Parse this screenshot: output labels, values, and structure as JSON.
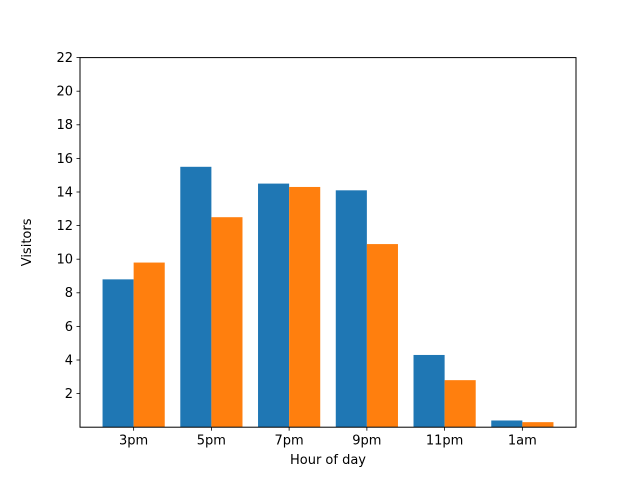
{
  "chart_data": {
    "type": "bar",
    "title": "",
    "xlabel": "Hour of day",
    "ylabel": "Visitors",
    "categories": [
      "3pm",
      "5pm",
      "7pm",
      "9pm",
      "11pm",
      "1am"
    ],
    "series": [
      {
        "name": "series-1-blue",
        "color": "#1f77b4",
        "values": [
          8.8,
          15.5,
          14.5,
          14.1,
          4.3,
          0.4
        ]
      },
      {
        "name": "series-2-orange",
        "color": "#ff7f0e",
        "values": [
          9.8,
          12.5,
          14.3,
          10.9,
          2.8,
          0.3
        ]
      }
    ],
    "ylim": [
      0,
      22
    ],
    "yticks": [
      2,
      4,
      6,
      8,
      10,
      12,
      14,
      16,
      18,
      20,
      22
    ],
    "bar_width": 0.4,
    "grid": false,
    "legend": null,
    "axis_color": "#000000",
    "background_color": "#ffffff"
  }
}
